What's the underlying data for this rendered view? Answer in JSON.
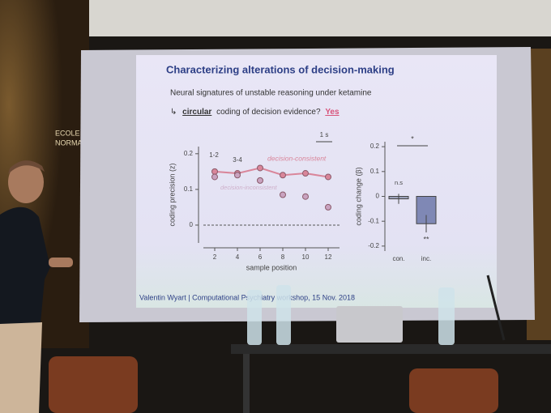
{
  "wall_sign": [
    "ECOLE",
    "NORMALE"
  ],
  "slide": {
    "title": "Characterizing alterations of decision-making",
    "subtitle": "Neural signatures of unstable reasoning under ketamine",
    "question": [
      "↳",
      "circular",
      "coding of decision evidence?",
      "Yes"
    ],
    "footer": "Valentin Wyart | Computational Psychiatry workshop, 15 Nov. 2018"
  },
  "left_chart": {
    "type": "line",
    "ylabel": "coding precision (z)",
    "xlabel": "sample position",
    "xlim": [
      1,
      13
    ],
    "ylim": [
      -0.05,
      0.22
    ],
    "xticks": [
      2,
      4,
      6,
      8,
      10,
      12
    ],
    "yticks": [
      0,
      0.1,
      0.2
    ],
    "x": [
      2,
      4,
      6,
      8,
      10,
      12
    ],
    "series": [
      {
        "name": "decision-consistent",
        "color": "#d9869a",
        "values": [
          0.15,
          0.145,
          0.16,
          0.14,
          0.145,
          0.135
        ]
      },
      {
        "name": "decision-inconsistent",
        "color": "#c9a3c0",
        "values": [
          0.135,
          0.14,
          0.125,
          0.085,
          0.08,
          0.05
        ]
      }
    ],
    "annotations": [
      "1-2",
      "3-4",
      "1 s"
    ]
  },
  "right_chart": {
    "type": "bar",
    "ylabel": "coding change (β)",
    "ylim": [
      -0.22,
      0.22
    ],
    "yticks": [
      0.2,
      0.1,
      0,
      -0.1,
      -0.2
    ],
    "categories": [
      "con.",
      "inc."
    ],
    "values": [
      -0.01,
      -0.11
    ],
    "errors": [
      0.02,
      0.035
    ],
    "colors": [
      "#9aa0b8",
      "#7f88b5"
    ],
    "labels": [
      "n.s",
      "**",
      "*"
    ]
  }
}
